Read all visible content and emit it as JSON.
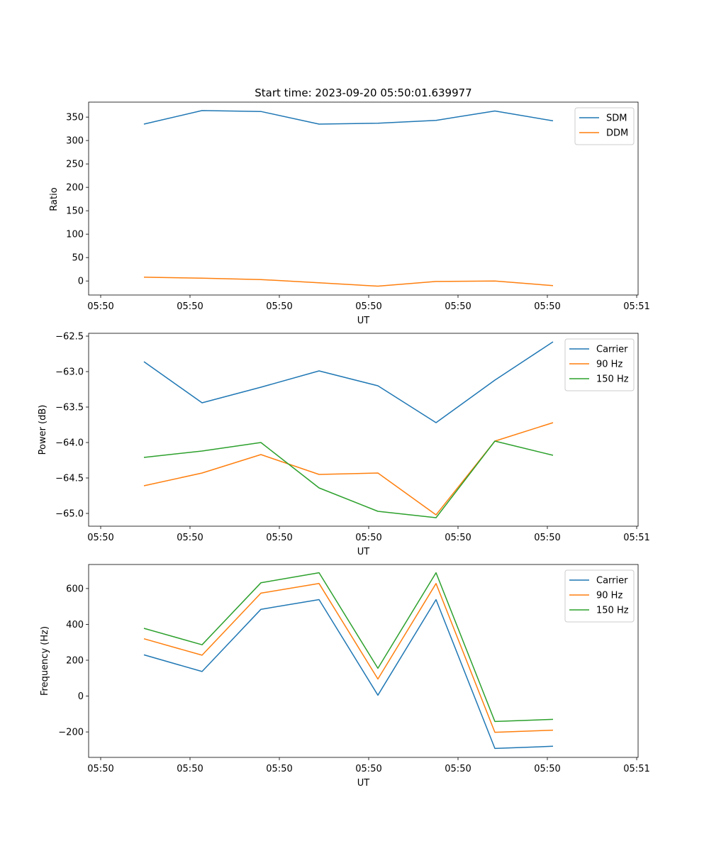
{
  "chart_data": [
    {
      "type": "line",
      "title": "Start time: 2023-09-20 05:50:01.639977",
      "xlabel": "UT",
      "ylabel": "Ratio",
      "x_tick_labels": [
        "05:50",
        "05:50",
        "05:50",
        "05:50",
        "05:50",
        "05:50",
        "05:51"
      ],
      "y_ticks": [
        0,
        50,
        100,
        150,
        200,
        250,
        300,
        350
      ],
      "ylim": [
        -30,
        382
      ],
      "legend_position": "upper right",
      "series": [
        {
          "name": "SDM",
          "color": "#1f77b4",
          "values": [
            335,
            364,
            362,
            335,
            337,
            343,
            363,
            342
          ]
        },
        {
          "name": "DDM",
          "color": "#ff7f0e",
          "values": [
            8,
            6,
            3,
            -4,
            -11,
            -1,
            0,
            -10
          ]
        }
      ]
    },
    {
      "type": "line",
      "xlabel": "UT",
      "ylabel": "Power (dB)",
      "x_tick_labels": [
        "05:50",
        "05:50",
        "05:50",
        "05:50",
        "05:50",
        "05:50",
        "05:51"
      ],
      "y_ticks": [
        -65.0,
        -64.5,
        -64.0,
        -63.5,
        -63.0,
        -62.5
      ],
      "y_tick_labels": [
        "−65.0",
        "−64.5",
        "−64.0",
        "−63.5",
        "−63.0",
        "−62.5"
      ],
      "ylim": [
        -65.18,
        -62.46
      ],
      "legend_position": "upper right",
      "series": [
        {
          "name": "Carrier",
          "color": "#1f77b4",
          "values": [
            -62.86,
            -63.44,
            -63.22,
            -62.99,
            -63.2,
            -63.72,
            -63.12,
            -62.58
          ]
        },
        {
          "name": "90 Hz",
          "color": "#ff7f0e",
          "values": [
            -64.61,
            -64.43,
            -64.17,
            -64.45,
            -64.43,
            -65.02,
            -63.98,
            -63.72
          ]
        },
        {
          "name": "150 Hz",
          "color": "#2ca02c",
          "values": [
            -64.21,
            -64.12,
            -64.0,
            -64.64,
            -64.97,
            -65.06,
            -63.98,
            -64.18
          ]
        }
      ]
    },
    {
      "type": "line",
      "xlabel": "UT",
      "ylabel": "Frequency (Hz)",
      "x_tick_labels": [
        "05:50",
        "05:50",
        "05:50",
        "05:50",
        "05:50",
        "05:50",
        "05:51"
      ],
      "y_ticks": [
        -200,
        0,
        200,
        400,
        600
      ],
      "y_tick_labels": [
        "−200",
        "0",
        "200",
        "400",
        "600"
      ],
      "ylim": [
        -342,
        734
      ],
      "legend_position": "upper right",
      "series": [
        {
          "name": "Carrier",
          "color": "#1f77b4",
          "values": [
            230,
            137,
            484,
            538,
            5,
            538,
            -292,
            -280
          ]
        },
        {
          "name": "90 Hz",
          "color": "#ff7f0e",
          "values": [
            320,
            228,
            574,
            628,
            95,
            628,
            -202,
            -190
          ]
        },
        {
          "name": "150 Hz",
          "color": "#2ca02c",
          "values": [
            378,
            286,
            632,
            688,
            155,
            688,
            -142,
            -130
          ]
        }
      ]
    }
  ]
}
